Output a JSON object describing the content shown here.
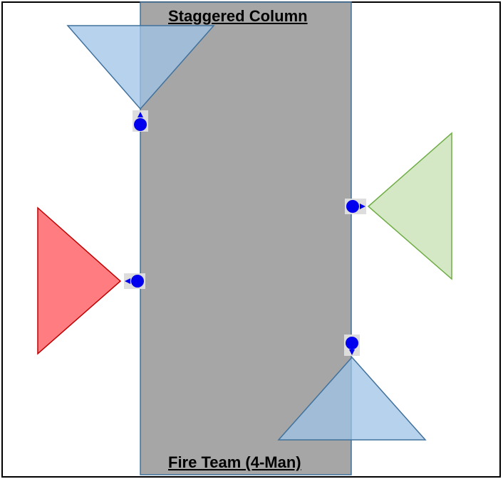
{
  "diagram": {
    "title": "Staggered Column",
    "caption": "Fire Team (4-Man)",
    "colors": {
      "border": "#000000",
      "column_fill": "#a6a6a6",
      "column_stroke": "#41719c",
      "blue_triangle_fill": "#9dc3e6",
      "blue_triangle_stroke": "#41719c",
      "green_triangle_fill": "#d5e8c5",
      "green_triangle_stroke": "#70ad47",
      "red_triangle_fill": "#ff7c80",
      "red_triangle_stroke": "#c00000",
      "marker": "#0000ee",
      "marker_halo": "#dddddd"
    },
    "positions": [
      {
        "name": "top-position",
        "facing": "up",
        "color": "blue"
      },
      {
        "name": "right-position",
        "facing": "right",
        "color": "green"
      },
      {
        "name": "left-position",
        "facing": "left",
        "color": "red"
      },
      {
        "name": "bottom-position",
        "facing": "down",
        "color": "blue"
      }
    ]
  }
}
